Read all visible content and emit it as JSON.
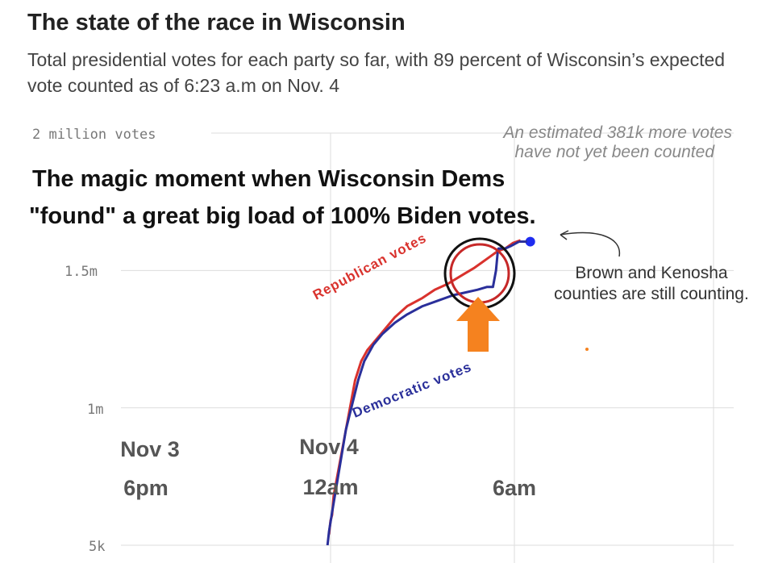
{
  "chart_data": {
    "type": "line",
    "title": "The state of the race in Wisconsin",
    "subtitle": "Total presidential votes for each party so far, with 89 percent of Wisconsin’s expected vote counted as of 6:23 a.m on Nov. 4",
    "y_ticks": [
      "2 million votes",
      "1.5m",
      "1m",
      "5k"
    ],
    "ylim": [
      500000,
      2000000
    ],
    "grid": true,
    "x_time_labels": [
      {
        "date": "Nov 3",
        "time": "6pm"
      },
      {
        "date": "Nov 4",
        "time": "12am"
      },
      {
        "date": "",
        "time": "6am"
      }
    ],
    "series": [
      {
        "name": "Republican votes",
        "color": "#d9322d",
        "points": [
          [
            -6.05,
            540000.0
          ],
          [
            -6.0,
            590000.0
          ],
          [
            -5.95,
            610000.0
          ],
          [
            -5.9,
            680000.0
          ],
          [
            -5.8,
            740000.0
          ],
          [
            -5.7,
            800000.0
          ],
          [
            -5.6,
            860000.0
          ],
          [
            -5.5,
            920000.0
          ],
          [
            -5.4,
            980000.0
          ],
          [
            -5.3,
            1040000.0
          ],
          [
            -5.2,
            1100000.0
          ],
          [
            -5.0,
            1170000.0
          ],
          [
            -4.8,
            1210000.0
          ],
          [
            -4.5,
            1250000.0
          ],
          [
            -4.2,
            1290000.0
          ],
          [
            -3.9,
            1330000.0
          ],
          [
            -3.5,
            1370000.0
          ],
          [
            -3.0,
            1400000.0
          ],
          [
            -2.6,
            1430000.0
          ],
          [
            -2.2,
            1450000.0
          ],
          [
            -1.9,
            1470000.0
          ],
          [
            -1.6,
            1490000.0
          ],
          [
            -1.3,
            1510000.0
          ],
          [
            -1.05,
            1530000.0
          ],
          [
            -0.8,
            1550000.0
          ],
          [
            -0.55,
            1570000.0
          ],
          [
            -0.3,
            1580000.0
          ],
          [
            -0.05,
            1600000.0
          ],
          [
            0.2,
            1610000.0
          ]
        ]
      },
      {
        "name": "Democratic votes",
        "color": "#2a2f9a",
        "points": [
          [
            -6.1,
            500000.0
          ],
          [
            -6.05,
            550000.0
          ],
          [
            -5.95,
            620000.0
          ],
          [
            -5.8,
            720000.0
          ],
          [
            -5.65,
            820000.0
          ],
          [
            -5.5,
            920000.0
          ],
          [
            -5.3,
            1010000.0
          ],
          [
            -5.1,
            1100000.0
          ],
          [
            -4.9,
            1170000.0
          ],
          [
            -4.6,
            1230000.0
          ],
          [
            -4.3,
            1270000.0
          ],
          [
            -3.9,
            1310000.0
          ],
          [
            -3.5,
            1340000.0
          ],
          [
            -3.0,
            1370000.0
          ],
          [
            -2.5,
            1390000.0
          ],
          [
            -2.0,
            1410000.0
          ],
          [
            -1.6,
            1420000.0
          ],
          [
            -1.2,
            1430000.0
          ],
          [
            -0.9,
            1440000.0
          ],
          [
            -0.7,
            1440000.0
          ],
          [
            -0.6,
            1500000.0
          ],
          [
            -0.55,
            1560000.0
          ],
          [
            -0.52,
            1580000.0
          ],
          [
            -0.3,
            1580000.0
          ],
          [
            -0.1,
            1590000.0
          ],
          [
            0.15,
            1605000.0
          ]
        ]
      }
    ],
    "annotations": {
      "uncounted_note": [
        "An estimated 381k more votes",
        "have not yet been counted"
      ],
      "counties_note": [
        "Brown and Kenosha",
        "counties are still counting."
      ],
      "overlay_caption": [
        "The magic moment when Wisconsin Dems",
        "\"found\" a great big load of 100% Biden votes."
      ]
    }
  },
  "colors": {
    "republican": "#d9322d",
    "democratic": "#2a2f9a",
    "arrow": "#f5821f",
    "grid": "#dddddd"
  }
}
